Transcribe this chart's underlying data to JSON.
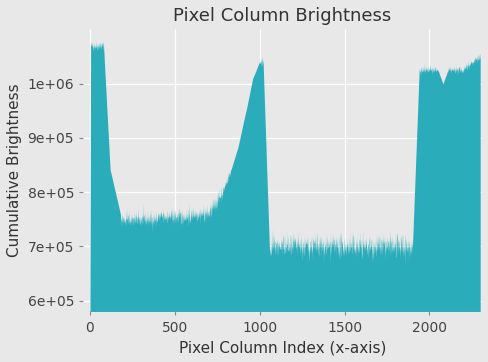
{
  "title": "Pixel Column Brightness",
  "xlabel": "Pixel Column Index (x-axis)",
  "ylabel": "Cumulative Brightness",
  "fill_color": "#2AACBA",
  "background_color": "#E8E8E8",
  "xlim": [
    -40,
    2310
  ],
  "ylim": [
    580000,
    1100000
  ],
  "yticks": [
    600000,
    700000,
    800000,
    900000,
    1000000
  ],
  "xticks": [
    0,
    500,
    1000,
    1500,
    2000
  ],
  "title_fontsize": 13,
  "label_fontsize": 11,
  "tick_fontsize": 10
}
